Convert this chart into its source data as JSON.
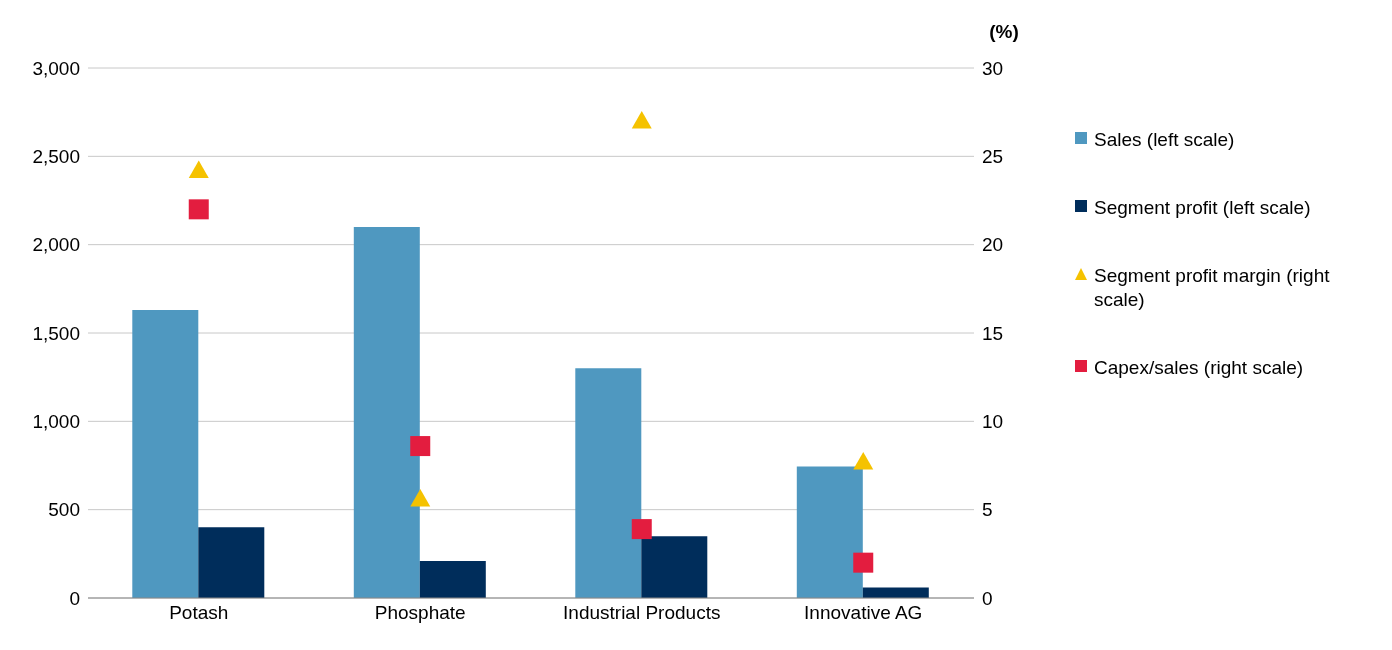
{
  "chart_data": {
    "type": "bar",
    "categories": [
      "Potash",
      "Phosphate",
      "Industrial Products",
      "Innovative AG"
    ],
    "y2label": "(%)",
    "ylim": [
      0,
      3000
    ],
    "yticks": [
      {
        "value": 0,
        "label": "0"
      },
      {
        "value": 500,
        "label": "500"
      },
      {
        "value": 1000,
        "label": "1,000"
      },
      {
        "value": 1500,
        "label": "1,500"
      },
      {
        "value": 2000,
        "label": "2,000"
      },
      {
        "value": 2500,
        "label": "2,500"
      },
      {
        "value": 3000,
        "label": "3,000"
      }
    ],
    "y2lim": [
      0,
      30
    ],
    "y2ticks": [
      0,
      5,
      10,
      15,
      20,
      25,
      30
    ],
    "grid": "y",
    "legend": "right",
    "series": [
      {
        "name": "Sales (left scale)",
        "color": "#4f98c0",
        "values": [
          1630,
          2100,
          1300,
          745
        ]
      },
      {
        "name": "Segment profit (left scale)",
        "color": "#002d5b",
        "values": [
          400,
          210,
          350,
          60
        ]
      },
      {
        "name": "Segment profit margin (right scale)",
        "type": "scatter",
        "axis": "y2",
        "marker": "triangle",
        "color": "#f5c200",
        "values": [
          24.2,
          5.6,
          27.0,
          7.7
        ]
      },
      {
        "name": "Capex/sales (right scale)",
        "type": "scatter",
        "axis": "y2",
        "marker": "square",
        "color": "#e31d3f",
        "values": [
          22.0,
          8.6,
          3.9,
          2.0
        ]
      }
    ]
  }
}
